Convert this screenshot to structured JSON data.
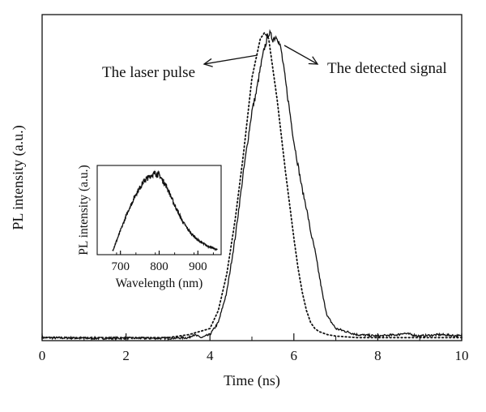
{
  "chart_data": [
    {
      "type": "line",
      "role": "main",
      "xlabel": "Time (ns)",
      "ylabel": "PL intensity (a.u.)",
      "xlim": [
        0,
        10
      ],
      "ylim": [
        0,
        1.08
      ],
      "x_ticks": [
        0,
        2,
        4,
        6,
        8,
        10
      ],
      "x_tick_labels": [
        "0",
        "2",
        "4",
        "6",
        "8",
        "10"
      ],
      "y_ticks": [],
      "grid": false,
      "annotations": [
        {
          "text": "The laser pulse",
          "points_to": "dotted series",
          "direction": "right"
        },
        {
          "text": "The detected signal",
          "points_to": "solid series",
          "direction": "left"
        }
      ],
      "series": [
        {
          "line_style": "dotted",
          "x": [
            0,
            1,
            2,
            3,
            3.5,
            4,
            4.2,
            4.4,
            4.6,
            4.8,
            5.0,
            5.2,
            5.3,
            5.4,
            5.5,
            5.6,
            5.7,
            5.8,
            5.9,
            6.0,
            6.1,
            6.2,
            6.3,
            6.4,
            6.5,
            6.6,
            6.8,
            7.0,
            7.5,
            8,
            9,
            10
          ],
          "y": [
            0.01,
            0.01,
            0.01,
            0.01,
            0.02,
            0.04,
            0.1,
            0.22,
            0.4,
            0.62,
            0.87,
            1.0,
            1.02,
            1.0,
            0.9,
            0.8,
            0.68,
            0.56,
            0.45,
            0.34,
            0.24,
            0.16,
            0.1,
            0.06,
            0.04,
            0.03,
            0.02,
            0.015,
            0.01,
            0.01,
            0.01,
            0.01
          ]
        },
        {
          "line_style": "solid",
          "x": [
            0,
            1,
            2,
            3,
            3.5,
            3.6,
            3.8,
            4.0,
            4.2,
            4.4,
            4.6,
            4.8,
            5.0,
            5.1,
            5.2,
            5.3,
            5.4,
            5.5,
            5.6,
            5.7,
            5.8,
            5.9,
            6.0,
            6.1,
            6.2,
            6.3,
            6.4,
            6.5,
            6.6,
            6.7,
            6.8,
            7.0,
            7.5,
            8,
            8.5,
            8.6,
            9,
            9.5,
            10
          ],
          "y": [
            0.01,
            0.008,
            0.008,
            0.008,
            0.01,
            0.02,
            0.01,
            0.02,
            0.06,
            0.16,
            0.34,
            0.56,
            0.76,
            0.82,
            0.9,
            0.97,
            1.02,
            1.0,
            1.01,
            0.96,
            0.86,
            0.76,
            0.66,
            0.58,
            0.5,
            0.44,
            0.36,
            0.3,
            0.22,
            0.14,
            0.08,
            0.04,
            0.02,
            0.015,
            0.02,
            0.025,
            0.015,
            0.02,
            0.015
          ]
        }
      ]
    },
    {
      "type": "line",
      "role": "inset",
      "xlabel": "Wavelength (nm)",
      "ylabel": "PL intensity (a.u.)",
      "xlim": [
        640,
        960
      ],
      "ylim": [
        0,
        1.12
      ],
      "x_ticks": [
        700,
        800,
        900
      ],
      "x_tick_labels": [
        "700",
        "800",
        "900"
      ],
      "y_ticks": [],
      "grid": false,
      "series": [
        {
          "line_style": "solid",
          "x": [
            680,
            700,
            720,
            740,
            760,
            780,
            790,
            800,
            820,
            840,
            860,
            880,
            900,
            920,
            940,
            950
          ],
          "y": [
            0.05,
            0.3,
            0.55,
            0.76,
            0.92,
            1.0,
            1.02,
            1.0,
            0.85,
            0.62,
            0.42,
            0.28,
            0.18,
            0.12,
            0.08,
            0.06
          ]
        }
      ]
    }
  ]
}
